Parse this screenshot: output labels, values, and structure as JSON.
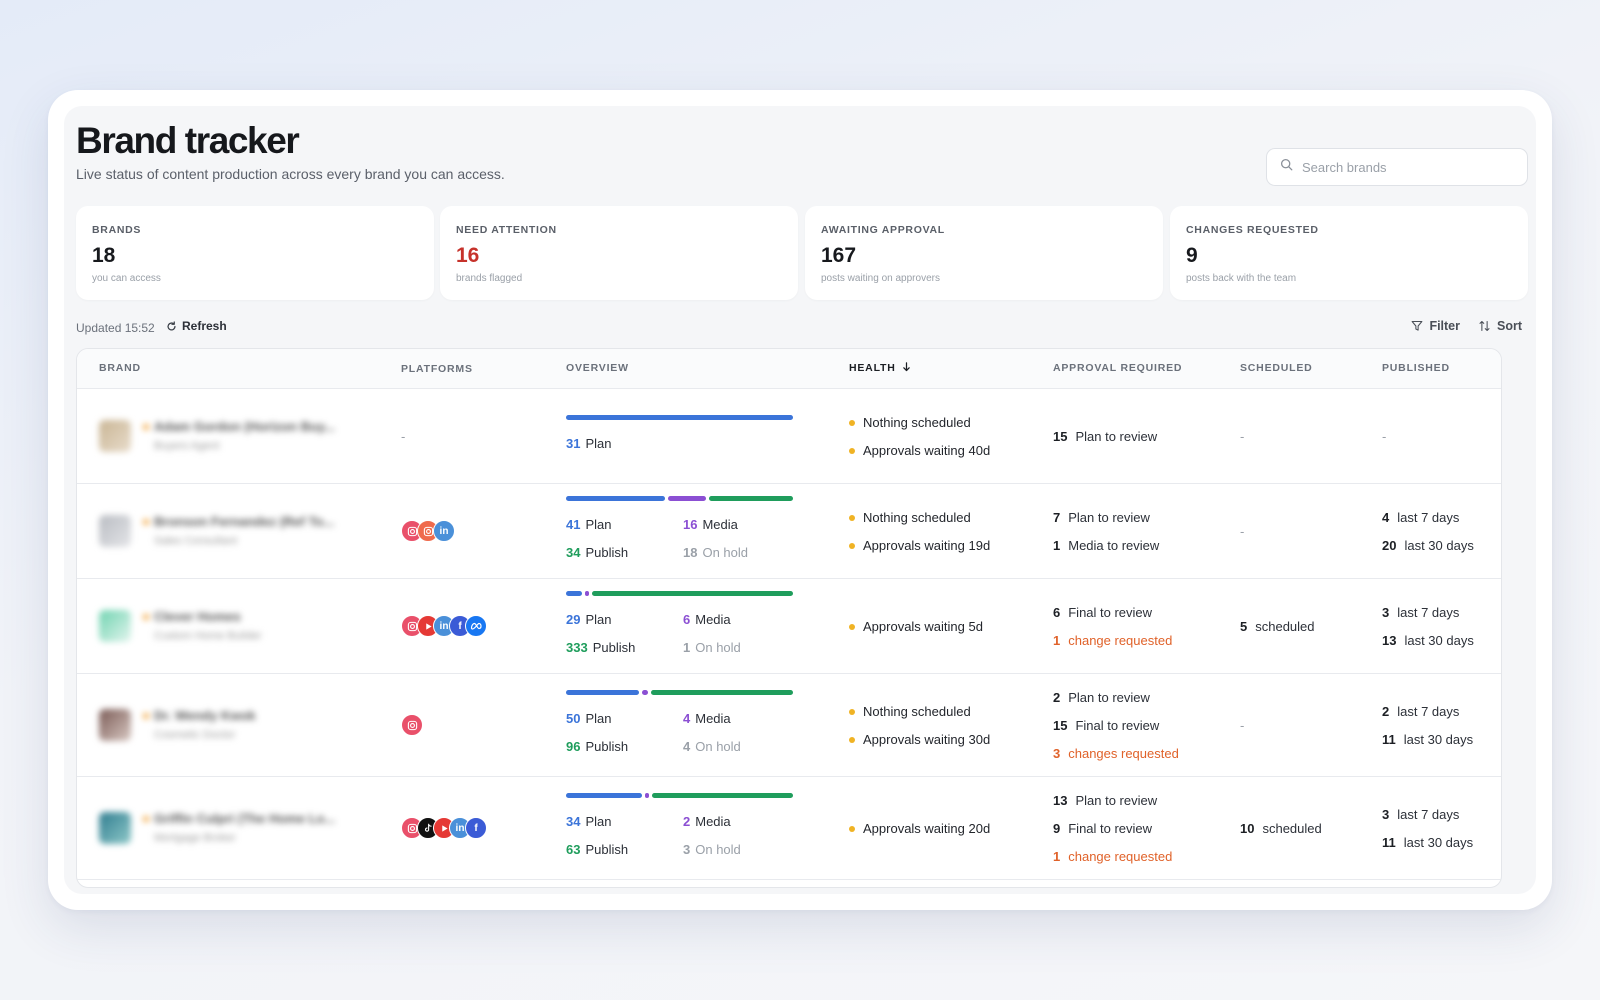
{
  "page": {
    "title": "Brand tracker",
    "subtitle": "Live status of content production across every brand you can access.",
    "search_placeholder": "Search brands"
  },
  "stats": [
    {
      "label": "BRANDS",
      "value": "18",
      "caption": "you can access"
    },
    {
      "label": "NEED ATTENTION",
      "value": "16",
      "caption": "brands flagged"
    },
    {
      "label": "AWAITING APPROVAL",
      "value": "167",
      "caption": "posts waiting on approvers"
    },
    {
      "label": "CHANGES REQUESTED",
      "value": "9",
      "caption": "posts back with the team"
    }
  ],
  "toolbar": {
    "updated": "Updated 15:52",
    "refresh": "Refresh",
    "filter": "Filter",
    "sort": "Sort"
  },
  "columns": {
    "brand": "BRAND",
    "platforms": "PLATFORMS",
    "overview": "OVERVIEW",
    "health": "HEALTH",
    "approval": "APPROVAL REQUIRED",
    "scheduled": "SCHEDULED",
    "published": "PUBLISHED"
  },
  "labels": {
    "plan": "Plan",
    "media": "Media",
    "publish": "Publish",
    "on_hold": "On hold",
    "dash": "-",
    "last7": "last 7 days",
    "last30": "last 30 days",
    "scheduled": "scheduled",
    "plan_review": "Plan to review",
    "media_review": "Media to review",
    "final_review": "Final to review",
    "change_req": "change requested",
    "changes_req": "changes requested"
  },
  "rows": [
    {
      "brand": "Adam Gordon (Horizon Buy...",
      "brand_sub": "Buyers Agent",
      "platforms": [],
      "overview": {
        "plan": 31,
        "media": null,
        "publish": null,
        "on_hold": null
      },
      "health": [
        "Nothing scheduled",
        "Approvals waiting 40d"
      ],
      "approval": [
        {
          "n": "15",
          "key": "plan_review",
          "alert": false
        }
      ],
      "scheduled": null,
      "published": null
    },
    {
      "brand": "Bronson Fernandez (Ref To...",
      "brand_sub": "Sales Consultant",
      "platforms": [
        "instagram",
        "instagram",
        "linkedin"
      ],
      "overview": {
        "plan": 41,
        "media": 16,
        "publish": 34,
        "on_hold": 18
      },
      "health": [
        "Nothing scheduled",
        "Approvals waiting 19d"
      ],
      "approval": [
        {
          "n": "7",
          "key": "plan_review",
          "alert": false
        },
        {
          "n": "1",
          "key": "media_review",
          "alert": false
        }
      ],
      "scheduled": null,
      "published": {
        "last7": "4",
        "last30": "20"
      }
    },
    {
      "brand": "Clever Homes",
      "brand_sub": "Custom Home Builder",
      "platforms": [
        "instagram",
        "youtube",
        "linkedin",
        "facebook",
        "meta"
      ],
      "overview": {
        "plan": 29,
        "media": 6,
        "publish": 333,
        "on_hold": 1
      },
      "health": [
        "Approvals waiting 5d"
      ],
      "approval": [
        {
          "n": "6",
          "key": "final_review",
          "alert": false
        },
        {
          "n": "1",
          "key": "change_req",
          "alert": true
        }
      ],
      "scheduled": "5",
      "published": {
        "last7": "3",
        "last30": "13"
      }
    },
    {
      "brand": "Dr. Wendy Kwok",
      "brand_sub": "Cosmetic Doctor",
      "platforms": [
        "instagram"
      ],
      "overview": {
        "plan": 50,
        "media": 4,
        "publish": 96,
        "on_hold": 4
      },
      "health": [
        "Nothing scheduled",
        "Approvals waiting 30d"
      ],
      "approval": [
        {
          "n": "2",
          "key": "plan_review",
          "alert": false
        },
        {
          "n": "15",
          "key": "final_review",
          "alert": false
        },
        {
          "n": "3",
          "key": "changes_req",
          "alert": true
        }
      ],
      "scheduled": null,
      "published": {
        "last7": "2",
        "last30": "11"
      }
    },
    {
      "brand": "Griffin Culpri (The Home Lo...",
      "brand_sub": "Mortgage Broker",
      "platforms": [
        "instagram",
        "tiktok",
        "youtube",
        "linkedin",
        "facebook"
      ],
      "overview": {
        "plan": 34,
        "media": 2,
        "publish": 63,
        "on_hold": 3
      },
      "health": [
        "Approvals waiting 20d"
      ],
      "approval": [
        {
          "n": "13",
          "key": "plan_review",
          "alert": false
        },
        {
          "n": "9",
          "key": "final_review",
          "alert": false
        },
        {
          "n": "1",
          "key": "change_req",
          "alert": true
        }
      ],
      "scheduled": "10",
      "published": {
        "last7": "3",
        "last30": "11"
      }
    }
  ],
  "colors": {
    "plan": "#3b74d9",
    "media": "#8b4fd3",
    "publish": "#1f9d5c",
    "alert": "#c6322b",
    "warning": "#f0b324",
    "change": "#e0622a"
  }
}
